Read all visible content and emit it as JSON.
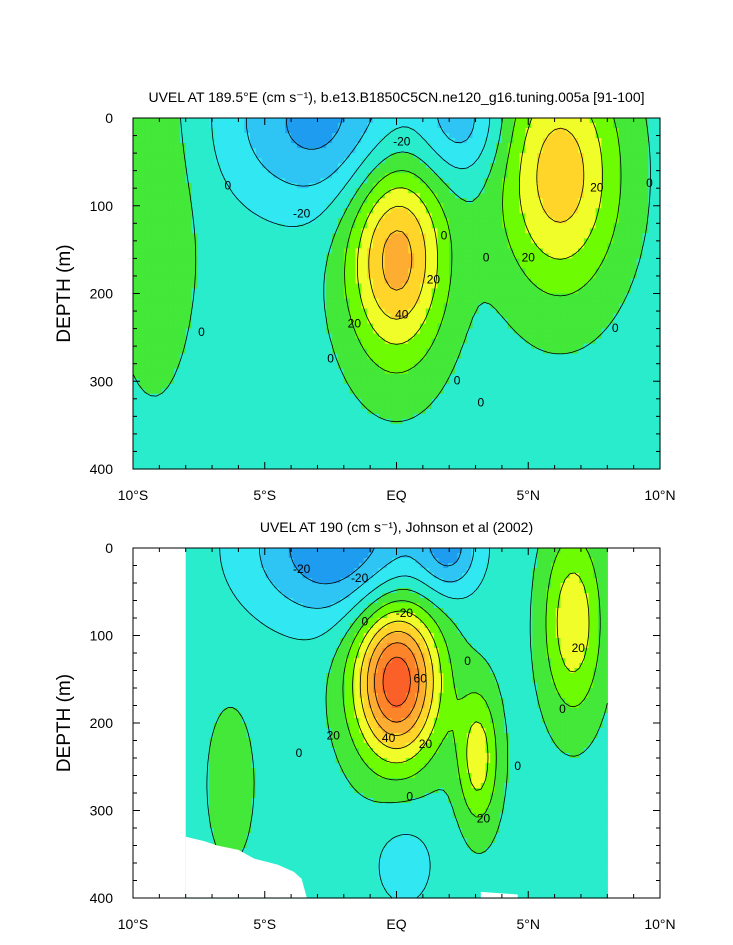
{
  "chart_data": [
    {
      "type": "contour",
      "title": "UVEL AT 189.5°E (cm s⁻¹), b.e13.B1850C5CN.ne120_g16.tuning.005a [91-100]",
      "ylabel": "DEPTH (m)",
      "xlabel": "",
      "xlim": [
        -10,
        10
      ],
      "ylim": [
        400,
        0
      ],
      "xticks": [
        -10,
        -5,
        0,
        5,
        10
      ],
      "xtick_labels": [
        "10°S",
        "5°S",
        "EQ",
        "5°N",
        "10°N"
      ],
      "yticks": [
        0,
        100,
        200,
        300,
        400
      ],
      "ytick_labels": [
        "0",
        "100",
        "200",
        "300",
        "400"
      ],
      "contour_interval": 10,
      "data_xrange": [
        -10,
        10
      ],
      "features": [
        {
          "kind": "jet",
          "lat": 0,
          "depth": 155,
          "peak": 50,
          "lat_width": 1.3,
          "depth_width": 85
        },
        {
          "kind": "jet",
          "lat": 6.2,
          "depth": 65,
          "peak": 40,
          "lat_width": 1.6,
          "depth_width": 95
        },
        {
          "kind": "current",
          "lat": -2.8,
          "depth": 5,
          "peak": -30,
          "lat_width": 2.6,
          "depth_width": 70
        },
        {
          "kind": "current",
          "lat": 2.5,
          "depth": 5,
          "peak": -20,
          "lat_width": 1.1,
          "depth_width": 45
        },
        {
          "kind": "current",
          "lat": -9.2,
          "depth": 80,
          "peak": 12,
          "lat_width": 1.2,
          "depth_width": 160
        }
      ],
      "contour_labels": [
        {
          "text": "-20",
          "lat": 0.2,
          "depth": 28
        },
        {
          "text": "-20",
          "lat": -3.6,
          "depth": 110
        },
        {
          "text": "0",
          "lat": -6.4,
          "depth": 78
        },
        {
          "text": "0",
          "lat": 1.8,
          "depth": 135
        },
        {
          "text": "0",
          "lat": 3.4,
          "depth": 160
        },
        {
          "text": "20",
          "lat": 5,
          "depth": 160
        },
        {
          "text": "20",
          "lat": 7.6,
          "depth": 80
        },
        {
          "text": "0",
          "lat": 9.6,
          "depth": 75
        },
        {
          "text": "20",
          "lat": 1.4,
          "depth": 185
        },
        {
          "text": "40",
          "lat": 0.2,
          "depth": 225
        },
        {
          "text": "20",
          "lat": -1.6,
          "depth": 235
        },
        {
          "text": "0",
          "lat": -7.4,
          "depth": 245
        },
        {
          "text": "0",
          "lat": 8.3,
          "depth": 240
        },
        {
          "text": "0",
          "lat": -2.5,
          "depth": 275
        },
        {
          "text": "0",
          "lat": 2.3,
          "depth": 300
        },
        {
          "text": "0",
          "lat": 3.2,
          "depth": 325
        }
      ]
    },
    {
      "type": "contour",
      "title": "UVEL AT 190 (cm s⁻¹), Johnson et al (2002)",
      "ylabel": "DEPTH (m)",
      "xlabel": "",
      "xlim": [
        -10,
        10
      ],
      "ylim": [
        400,
        0
      ],
      "xticks": [
        -10,
        -5,
        0,
        5,
        10
      ],
      "xtick_labels": [
        "10°S",
        "5°S",
        "EQ",
        "5°N",
        "10°N"
      ],
      "yticks": [
        0,
        100,
        200,
        300,
        400
      ],
      "ytick_labels": [
        "0",
        "100",
        "200",
        "300",
        "400"
      ],
      "contour_interval": 10,
      "data_xrange": [
        -8,
        8
      ],
      "features": [
        {
          "kind": "jet",
          "lat": 0,
          "depth": 150,
          "peak": 72,
          "lat_width": 1.15,
          "depth_width": 65
        },
        {
          "kind": "jet",
          "lat": 3.1,
          "depth": 240,
          "peak": 30,
          "lat_width": 0.55,
          "depth_width": 55
        },
        {
          "kind": "jet",
          "lat": 6.7,
          "depth": 85,
          "peak": 32,
          "lat_width": 0.8,
          "depth_width": 75
        },
        {
          "kind": "current",
          "lat": -2.2,
          "depth": 0,
          "peak": -35,
          "lat_width": 2.4,
          "depth_width": 60
        },
        {
          "kind": "current",
          "lat": 2,
          "depth": 0,
          "peak": -25,
          "lat_width": 0.8,
          "depth_width": 35
        },
        {
          "kind": "current",
          "lat": -6.3,
          "depth": 270,
          "peak": 12,
          "lat_width": 0.6,
          "depth_width": 60
        },
        {
          "kind": "current",
          "lat": 0.3,
          "depth": 360,
          "peak": -10,
          "lat_width": 1,
          "depth_width": 45
        }
      ],
      "contour_labels": [
        {
          "text": "-20",
          "lat": -3.6,
          "depth": 25
        },
        {
          "text": "-20",
          "lat": -1.4,
          "depth": 35
        },
        {
          "text": "-20",
          "lat": 0.3,
          "depth": 75
        },
        {
          "text": "0",
          "lat": -1.2,
          "depth": 85
        },
        {
          "text": "0",
          "lat": 2.7,
          "depth": 130
        },
        {
          "text": "60",
          "lat": 0.9,
          "depth": 150
        },
        {
          "text": "20",
          "lat": 6.9,
          "depth": 115
        },
        {
          "text": "20",
          "lat": -2.4,
          "depth": 215
        },
        {
          "text": "40",
          "lat": -0.3,
          "depth": 218
        },
        {
          "text": "20",
          "lat": 1.1,
          "depth": 225
        },
        {
          "text": "0",
          "lat": 6.3,
          "depth": 185
        },
        {
          "text": "0",
          "lat": -3.7,
          "depth": 235
        },
        {
          "text": "0",
          "lat": 4.6,
          "depth": 250
        },
        {
          "text": "0",
          "lat": 0.5,
          "depth": 285
        },
        {
          "text": "20",
          "lat": 3.3,
          "depth": 310
        }
      ]
    }
  ],
  "colors": {
    "levels": [
      -30,
      -20,
      -10,
      0,
      10,
      20,
      30,
      40,
      50,
      60,
      70
    ],
    "palette": [
      "#1e9cf0",
      "#2ec4f4",
      "#31e8f2",
      "#28eccc",
      "#43e838",
      "#6efc02",
      "#f0fd28",
      "#ffd52a",
      "#fdad31",
      "#fd8428",
      "#fb6028",
      "#ee1e1e"
    ],
    "line": "#000000"
  }
}
